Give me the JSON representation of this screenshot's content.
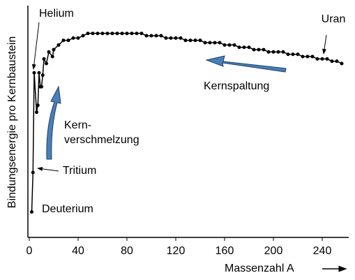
{
  "chart_data": {
    "type": "scatter-line",
    "y_label": "Bindungsenergie pro Kernbaustein",
    "x_label": "Massenzahl A",
    "annotations": [
      "Helium",
      "Tritium",
      "Deuterium",
      "Uran",
      "Kern-",
      "verschmelzung",
      "Kernspaltung"
    ],
    "x": [
      2,
      3,
      4,
      6,
      7,
      8,
      9,
      10,
      11,
      12,
      14,
      16,
      19,
      20,
      24,
      28,
      32,
      36,
      40,
      44,
      48,
      52,
      56,
      60,
      64,
      68,
      72,
      76,
      80,
      84,
      88,
      92,
      96,
      100,
      104,
      108,
      112,
      116,
      120,
      124,
      128,
      132,
      136,
      140,
      144,
      148,
      152,
      156,
      160,
      164,
      168,
      172,
      176,
      180,
      184,
      188,
      192,
      196,
      200,
      204,
      208,
      212,
      216,
      220,
      224,
      228,
      232,
      236,
      240,
      244,
      248,
      252,
      256
    ],
    "values": [
      1.1,
      2.8,
      7.1,
      5.4,
      5.7,
      7.1,
      6.5,
      6.5,
      7.0,
      7.7,
      7.5,
      8.0,
      7.8,
      8.1,
      8.3,
      8.5,
      8.5,
      8.6,
      8.6,
      8.7,
      8.8,
      8.8,
      8.8,
      8.8,
      8.8,
      8.8,
      8.8,
      8.8,
      8.8,
      8.8,
      8.8,
      8.8,
      8.7,
      8.7,
      8.7,
      8.7,
      8.6,
      8.6,
      8.6,
      8.6,
      8.5,
      8.5,
      8.5,
      8.5,
      8.4,
      8.4,
      8.4,
      8.4,
      8.3,
      8.3,
      8.3,
      8.2,
      8.2,
      8.2,
      8.1,
      8.1,
      8.1,
      8.0,
      8.0,
      8.0,
      8.0,
      7.9,
      7.9,
      7.9,
      7.8,
      7.8,
      7.8,
      7.7,
      7.7,
      7.7,
      7.6,
      7.6,
      7.5
    ],
    "color": "#000000",
    "xlim": [
      0,
      260
    ],
    "xticks": [
      0,
      40,
      80,
      120,
      160,
      200,
      240
    ],
    "ylim": [
      0,
      10
    ]
  }
}
